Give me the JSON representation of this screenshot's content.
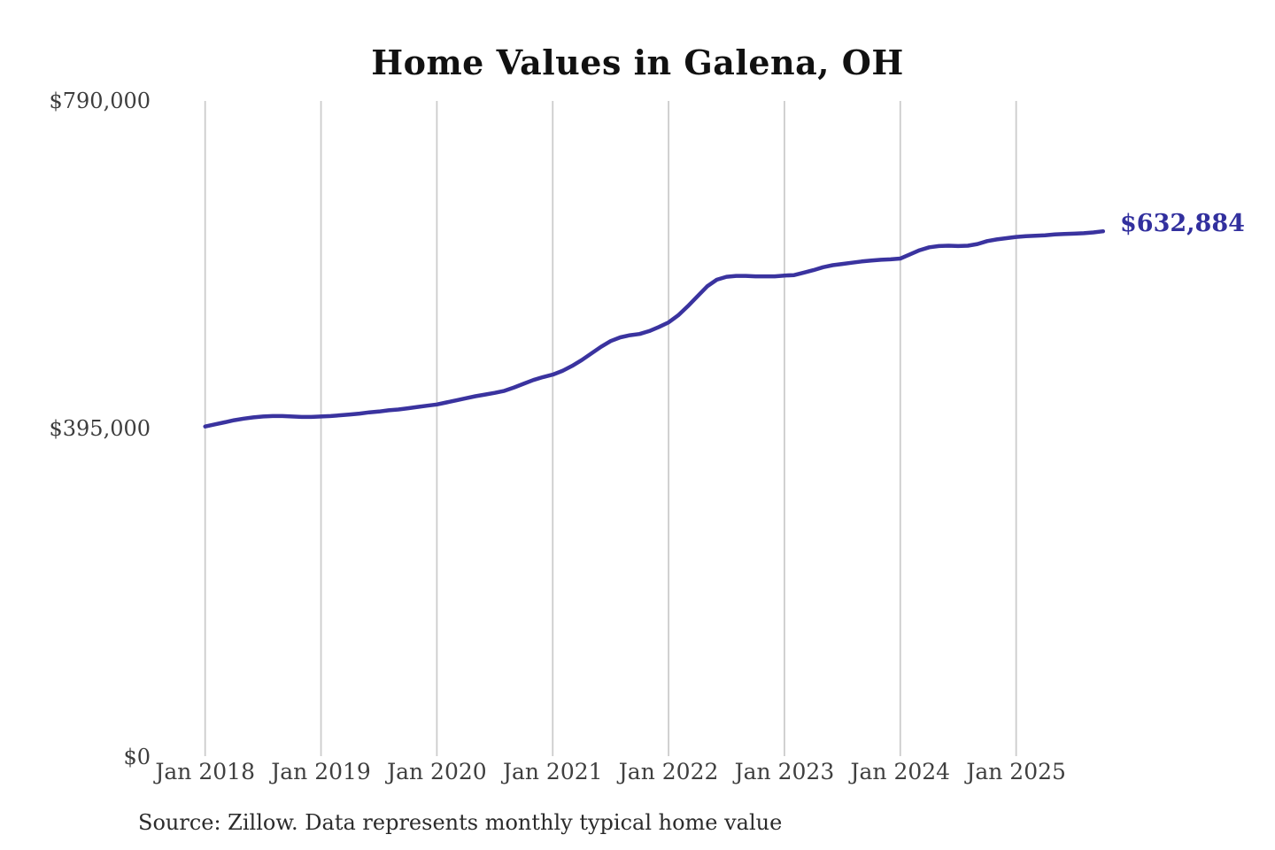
{
  "page": {
    "background": "#ffffff"
  },
  "header": {
    "title": "Home Values in Galena, OH"
  },
  "chart": {
    "end_label": "$632,884",
    "line_color": "#3a339f",
    "end_label_color": "#32309e",
    "grid_color": "#cccccc",
    "y_axis": {
      "labels": [
        "$790,000",
        "$395,000",
        "$0"
      ]
    },
    "x_axis": {
      "labels": [
        "Jan 2018",
        "Jan 2019",
        "Jan 2020",
        "Jan 2021",
        "Jan 2022",
        "Jan 2023",
        "Jan 2024",
        "Jan 2025"
      ]
    }
  },
  "footer": {
    "source": "Source: Zillow. Data represents monthly typical home value"
  },
  "chart_data": {
    "type": "line",
    "title": "Home Values in Galena, OH",
    "unit": "USD",
    "x_start_month": "2018-01",
    "x_end_month": "2025-10",
    "ylim": [
      0,
      790000
    ],
    "y_ticks": [
      0,
      395000,
      790000
    ],
    "y_tick_labels": [
      "$0",
      "$395,000",
      "$790,000"
    ],
    "x_tick_labels": [
      "Jan 2018",
      "Jan 2019",
      "Jan 2020",
      "Jan 2021",
      "Jan 2022",
      "Jan 2023",
      "Jan 2024",
      "Jan 2025"
    ],
    "grid": "vertical-only",
    "legend": "none",
    "end_value": 632884,
    "end_value_label": "$632,884",
    "source": "Source: Zillow. Data represents monthly typical home value",
    "series": [
      {
        "name": "Monthly typical home value",
        "monthly_values": [
          397500,
          400000,
          402500,
          405000,
          407000,
          408500,
          409500,
          410000,
          410000,
          409500,
          409000,
          409000,
          409500,
          410000,
          411000,
          412000,
          413000,
          414500,
          415500,
          417000,
          418000,
          419500,
          421000,
          422500,
          424000,
          426500,
          429000,
          431500,
          434000,
          436000,
          438000,
          440500,
          444500,
          449000,
          453500,
          457000,
          460000,
          464500,
          470500,
          477500,
          485500,
          493500,
          500500,
          505000,
          507500,
          509000,
          512500,
          517500,
          523000,
          531500,
          542500,
          554500,
          566500,
          574500,
          578000,
          579000,
          579000,
          578500,
          578500,
          578500,
          579500,
          580000,
          583000,
          586000,
          589500,
          592000,
          593500,
          595000,
          596500,
          597500,
          598500,
          599000,
          600000,
          605000,
          610000,
          613500,
          615000,
          615500,
          615000,
          615500,
          617500,
          621000,
          623000,
          624500,
          626000,
          627000,
          627500,
          628000,
          629000,
          629500,
          630000,
          630500,
          631500,
          632884
        ]
      }
    ]
  }
}
